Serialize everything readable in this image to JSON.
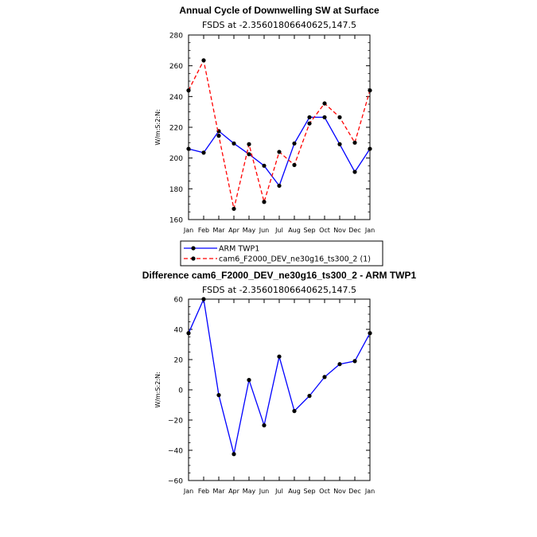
{
  "chart_data": [
    {
      "type": "line",
      "title": "Annual Cycle of Downwelling SW at Surface",
      "subtitle": "FSDS at -2.35601806640625,147.5",
      "xlabel": "",
      "ylabel": "W/m:S:2:N:",
      "categories": [
        "Jan",
        "Feb",
        "Mar",
        "Apr",
        "May",
        "Jun",
        "Jul",
        "Aug",
        "Sep",
        "Oct",
        "Nov",
        "Dec",
        "Jan"
      ],
      "ylim": [
        160,
        280
      ],
      "yticks": [
        160,
        180,
        200,
        220,
        240,
        260,
        280
      ],
      "yticks_text": [
        "160",
        "180",
        "200",
        "220",
        "240",
        "260",
        "280"
      ],
      "series": [
        {
          "name": "ARM TWP1",
          "color": "#0000ff",
          "dash": "solid",
          "values": [
            206,
            203.5,
            217.5,
            209.5,
            202.5,
            195,
            182,
            209.5,
            226.5,
            226.5,
            209,
            191,
            206
          ]
        },
        {
          "name": "cam6_F2000_DEV_ne30g16_ts300_2 (1)",
          "color": "#ff0000",
          "dash": "dashed",
          "values": [
            244,
            263.5,
            214.5,
            167,
            209,
            171.5,
            204,
            195.5,
            222.5,
            235.5,
            226.5,
            210,
            244
          ]
        }
      ]
    },
    {
      "type": "line",
      "title": "Difference cam6_F2000_DEV_ne30g16_ts300_2 - ARM TWP1",
      "subtitle": "FSDS at -2.35601806640625,147.5",
      "xlabel": "",
      "ylabel": "W/m:S:2:N:",
      "categories": [
        "Jan",
        "Feb",
        "Mar",
        "Apr",
        "May",
        "Jun",
        "Jul",
        "Aug",
        "Sep",
        "Oct",
        "Nov",
        "Dec",
        "Jan"
      ],
      "ylim": [
        -60,
        60
      ],
      "yticks": [
        -60,
        -40,
        -20,
        0,
        20,
        40,
        60
      ],
      "yticks_text": [
        "−60",
        "−40",
        "−20",
        "0",
        "20",
        "40",
        "60"
      ],
      "series": [
        {
          "color": "#0000ff",
          "dash": "solid",
          "values": [
            37.5,
            60,
            -3.5,
            -42.5,
            6.5,
            -23.5,
            22,
            -14,
            -4,
            8.5,
            17,
            19,
            37.5
          ]
        }
      ]
    }
  ]
}
